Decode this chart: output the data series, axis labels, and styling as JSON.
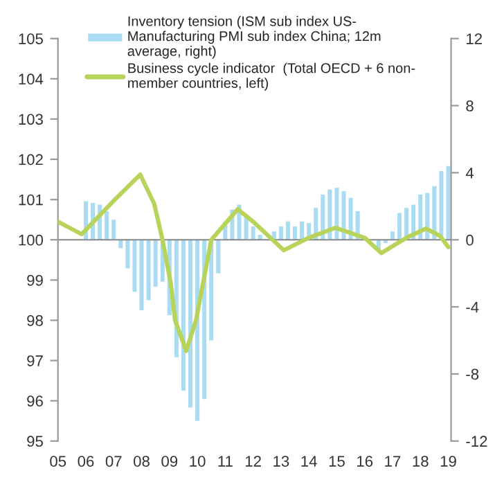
{
  "chart_data": {
    "type": "line",
    "x": [
      2005.0,
      2005.85,
      2007.0,
      2007.95,
      2008.45,
      2008.75,
      2009.05,
      2009.2,
      2009.6,
      2009.95,
      2010.5,
      2011.45,
      2012.0,
      2013.1,
      2014.0,
      2014.95,
      2016.0,
      2016.6,
      2017.5,
      2018.2,
      2018.7,
      2019.0
    ],
    "series": [
      {
        "name": "Inventory tension (ISM sub index US-\nManufacturing PMI sub index China; 12m\naverage, right)",
        "type": "bar",
        "axis": "y2",
        "color": "#a9dcf2",
        "x": [
          2006.0,
          2006.25,
          2006.5,
          2006.75,
          2007.0,
          2007.25,
          2007.5,
          2007.75,
          2008.0,
          2008.25,
          2008.5,
          2008.75,
          2009.0,
          2009.25,
          2009.5,
          2009.75,
          2010.0,
          2010.25,
          2010.5,
          2010.75,
          2011.0,
          2011.25,
          2011.5,
          2011.75,
          2012.0,
          2012.25,
          2012.5,
          2012.75,
          2013.0,
          2013.25,
          2013.5,
          2013.75,
          2014.0,
          2014.25,
          2014.5,
          2014.75,
          2015.0,
          2015.25,
          2015.5,
          2015.75,
          2016.0,
          2016.25,
          2016.5,
          2016.75,
          2017.0,
          2017.25,
          2017.5,
          2017.75,
          2018.0,
          2018.25,
          2018.5,
          2018.75,
          2019.0
        ],
        "values": [
          2.3,
          2.2,
          2.1,
          1.7,
          1.2,
          -0.5,
          -1.7,
          -3.1,
          -4.2,
          -3.6,
          -2.8,
          -2.5,
          -4.5,
          -7,
          -9,
          -10,
          -10.8,
          -9.5,
          -6,
          -2,
          1.1,
          1.8,
          2.1,
          1.4,
          0.8,
          0.3,
          null,
          0.5,
          0.8,
          1.1,
          0.8,
          1.1,
          1.0,
          1.9,
          2.7,
          3.0,
          3.1,
          2.9,
          2.5,
          1.7,
          null,
          null,
          -0.6,
          -0.2,
          0.5,
          1.6,
          1.9,
          2.1,
          2.7,
          2.8,
          3.2,
          4.1,
          4.4
        ]
      },
      {
        "name": "Business cycle indicator  (Total OECD + 6 non-\nmember countries, left)",
        "color": "#b8d35a",
        "values": [
          100.45,
          100.14,
          100.97,
          101.62,
          100.9,
          100.0,
          98.9,
          98.0,
          97.24,
          98.0,
          100.0,
          100.76,
          100.45,
          99.74,
          100.05,
          100.3,
          100.05,
          99.67,
          100.05,
          100.28,
          100.1,
          99.82
        ]
      }
    ],
    "xlim": [
      2005,
      2019.1
    ],
    "xticks": [
      {
        "value": 2005,
        "label": "05"
      },
      {
        "value": 2006,
        "label": "06"
      },
      {
        "value": 2007,
        "label": "07"
      },
      {
        "value": 2008,
        "label": "08"
      },
      {
        "value": 2009,
        "label": "09"
      },
      {
        "value": 2010,
        "label": "10"
      },
      {
        "value": 2011,
        "label": "11"
      },
      {
        "value": 2012,
        "label": "12"
      },
      {
        "value": 2013,
        "label": "13"
      },
      {
        "value": 2014,
        "label": "14"
      },
      {
        "value": 2015,
        "label": "15"
      },
      {
        "value": 2016,
        "label": "16"
      },
      {
        "value": 2017,
        "label": "17"
      },
      {
        "value": 2018,
        "label": "18"
      },
      {
        "value": 2019,
        "label": "19"
      }
    ],
    "ylim": [
      95,
      105
    ],
    "yticks": [
      95,
      96,
      97,
      98,
      99,
      100,
      101,
      102,
      103,
      104,
      105
    ],
    "y2lim": [
      -12,
      12
    ],
    "y2ticks": [
      -12,
      -8,
      -4,
      0,
      4,
      8,
      12
    ],
    "ref_lines": [
      {
        "axis": "y",
        "value": 100,
        "color": "#888888"
      }
    ],
    "legend": "top left",
    "grid": false,
    "marker": "none",
    "line_style": "solid"
  }
}
